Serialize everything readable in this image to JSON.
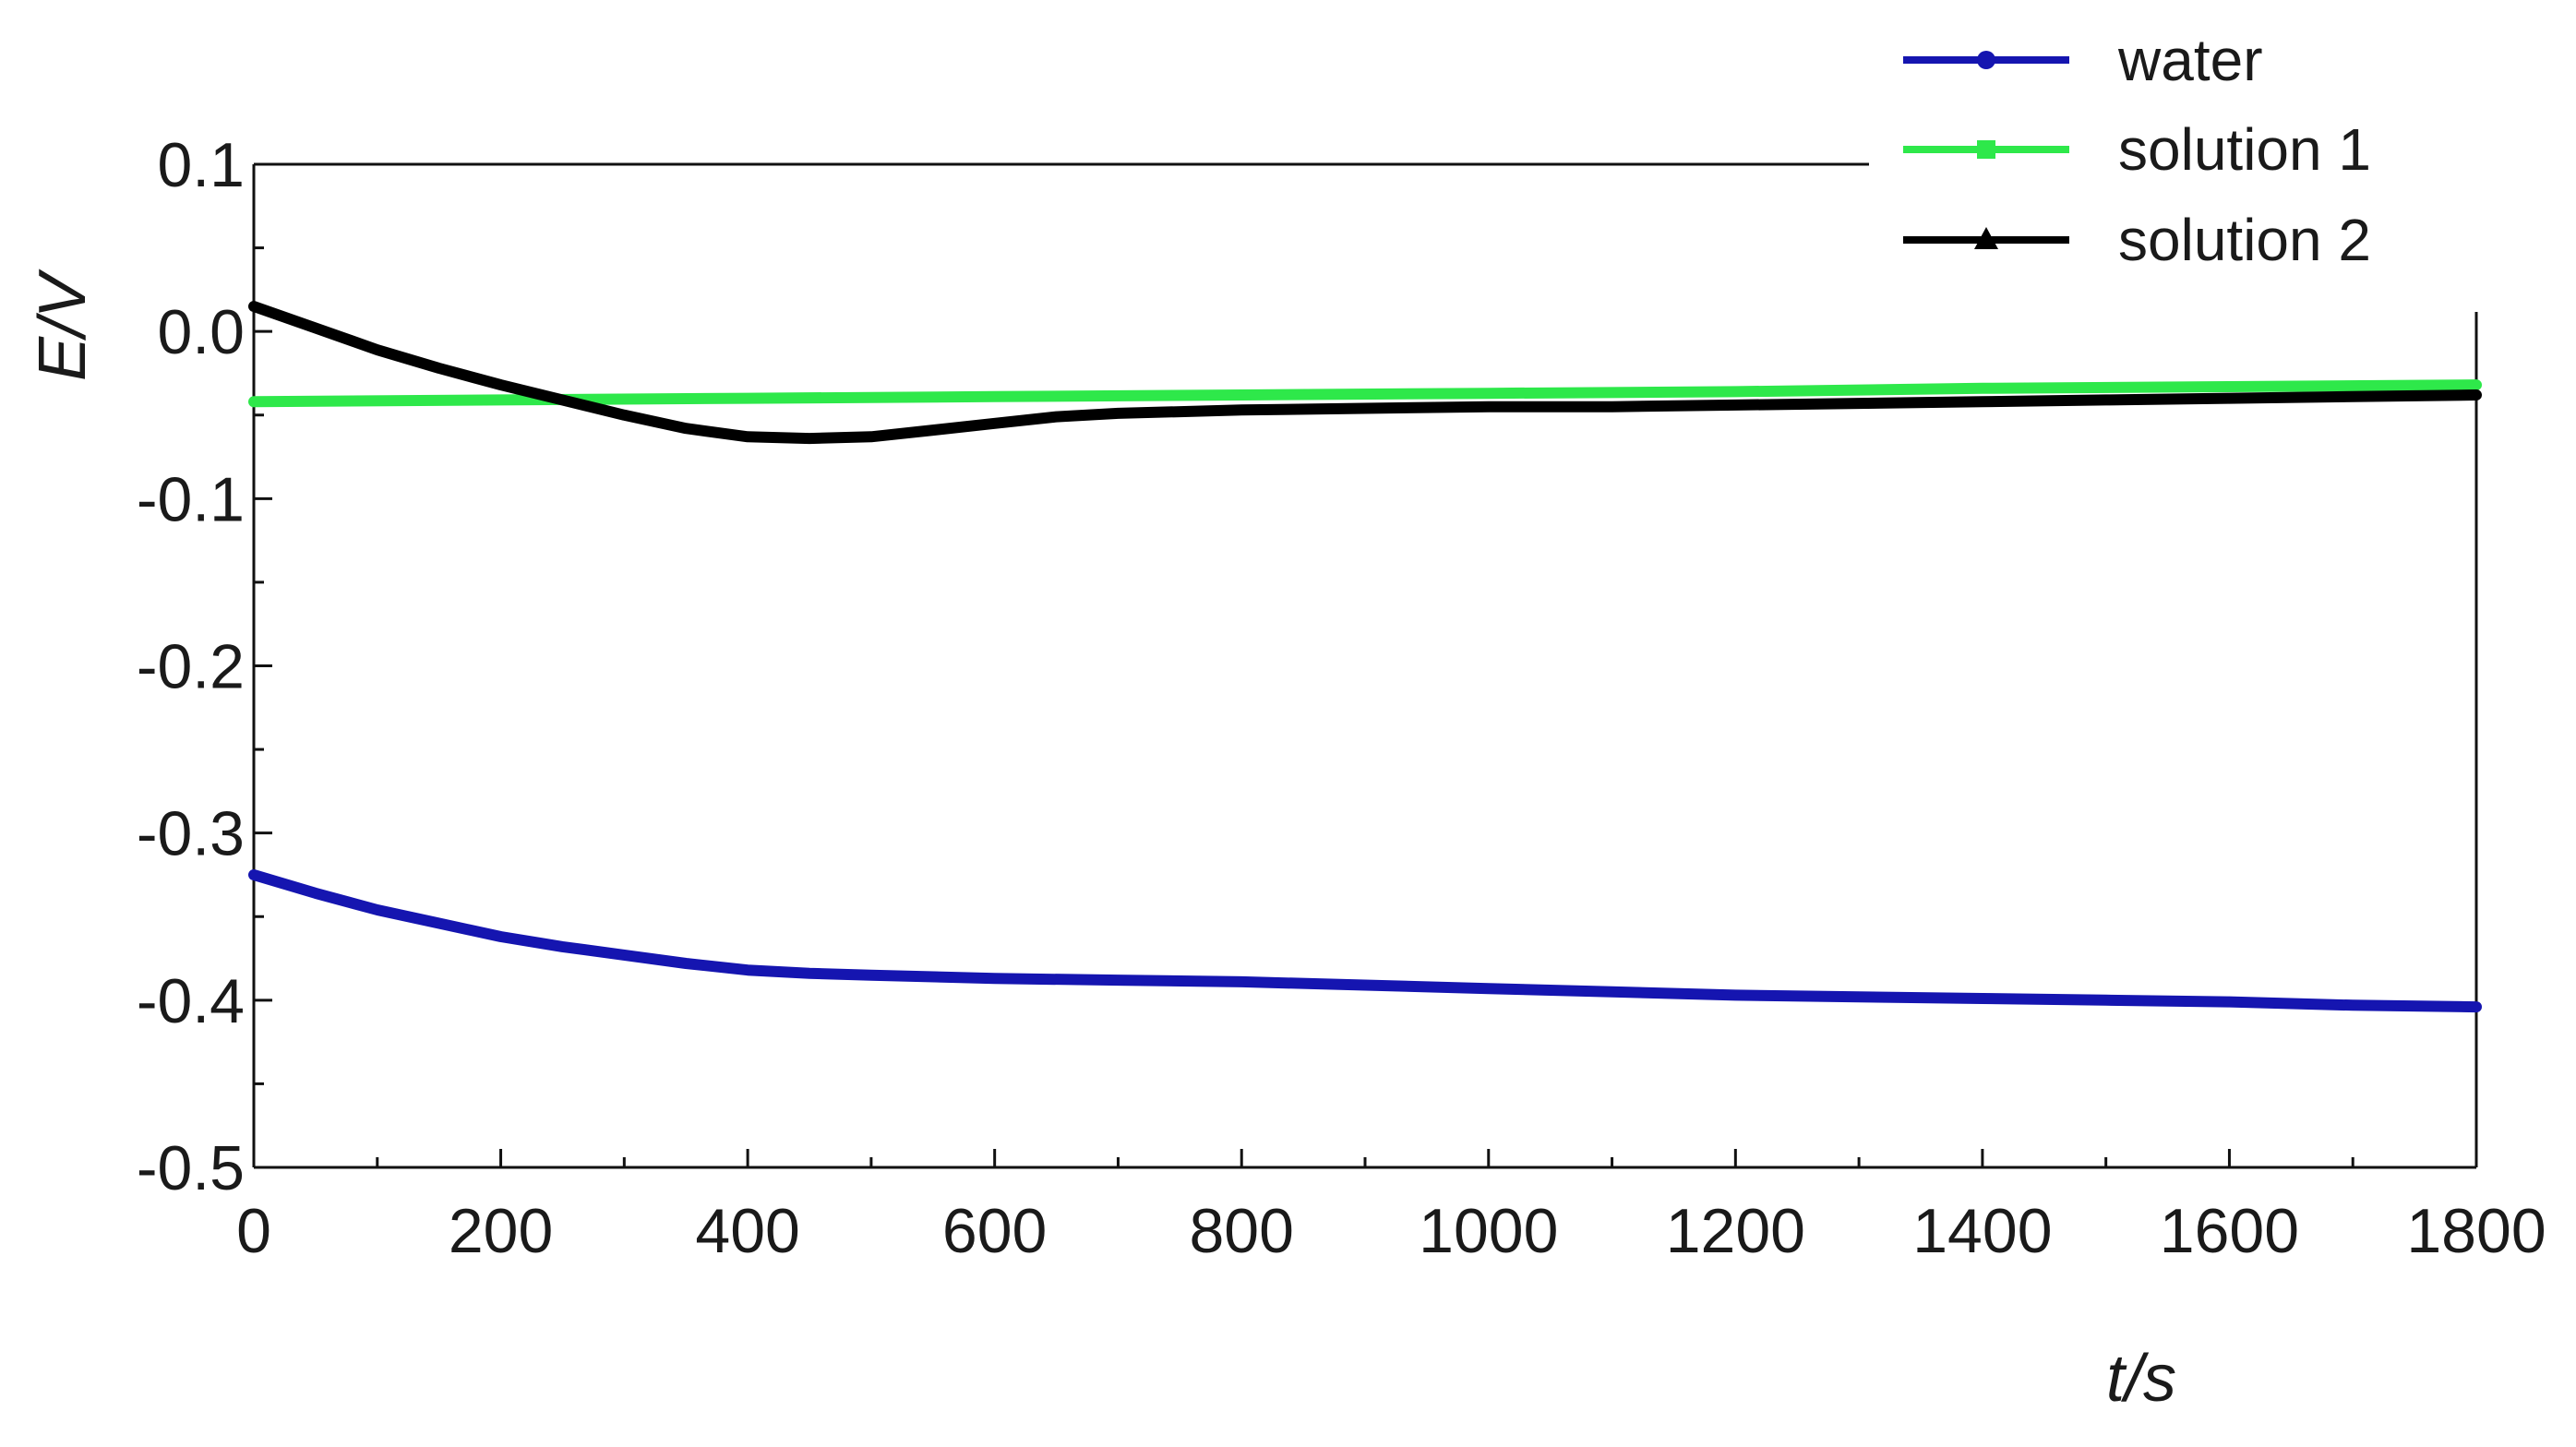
{
  "chart_data": {
    "type": "line",
    "title": "",
    "xlabel": "t/s",
    "ylabel": "E/V",
    "xlim": [
      0,
      1800
    ],
    "ylim": [
      -0.5,
      0.1
    ],
    "xticks": [
      0,
      200,
      400,
      600,
      800,
      1000,
      1200,
      1400,
      1600,
      1800
    ],
    "xtick_labels": [
      "0",
      "200",
      "400",
      "600",
      "800",
      "1000",
      "1200",
      "1400",
      "1600",
      "1800"
    ],
    "yticks": [
      0.1,
      0.0,
      -0.1,
      -0.2,
      -0.3,
      -0.4,
      -0.5
    ],
    "ytick_labels": [
      "0.1",
      "0.0",
      "-0.1",
      "-0.2",
      "-0.3",
      "-0.4",
      "-0.5"
    ],
    "grid": false,
    "legend_position": "top-right",
    "series": [
      {
        "name": "water",
        "color": "#1515b0",
        "marker": "circle",
        "x": [
          0,
          50,
          100,
          150,
          200,
          250,
          300,
          350,
          400,
          450,
          500,
          600,
          700,
          800,
          900,
          1000,
          1100,
          1200,
          1300,
          1400,
          1500,
          1600,
          1700,
          1800
        ],
        "y": [
          -0.325,
          -0.336,
          -0.346,
          -0.354,
          -0.362,
          -0.368,
          -0.373,
          -0.378,
          -0.382,
          -0.384,
          -0.385,
          -0.387,
          -0.388,
          -0.389,
          -0.391,
          -0.393,
          -0.395,
          -0.397,
          -0.398,
          -0.399,
          -0.4,
          -0.401,
          -0.403,
          -0.404
        ]
      },
      {
        "name": "solution 1",
        "color": "#2ee84a",
        "marker": "square",
        "x": [
          0,
          200,
          400,
          600,
          800,
          1000,
          1200,
          1400,
          1600,
          1800
        ],
        "y": [
          -0.042,
          -0.041,
          -0.04,
          -0.039,
          -0.038,
          -0.037,
          -0.036,
          -0.034,
          -0.033,
          -0.032
        ]
      },
      {
        "name": "solution 2",
        "color": "#000000",
        "marker": "triangle",
        "x": [
          0,
          50,
          100,
          150,
          200,
          250,
          300,
          350,
          400,
          450,
          500,
          550,
          600,
          650,
          700,
          800,
          900,
          1000,
          1100,
          1200,
          1300,
          1400,
          1500,
          1600,
          1700,
          1800
        ],
        "y": [
          0.015,
          0.002,
          -0.011,
          -0.022,
          -0.032,
          -0.041,
          -0.05,
          -0.058,
          -0.063,
          -0.064,
          -0.063,
          -0.059,
          -0.055,
          -0.051,
          -0.049,
          -0.047,
          -0.046,
          -0.045,
          -0.045,
          -0.044,
          -0.043,
          -0.042,
          -0.041,
          -0.04,
          -0.039,
          -0.038
        ]
      }
    ]
  }
}
